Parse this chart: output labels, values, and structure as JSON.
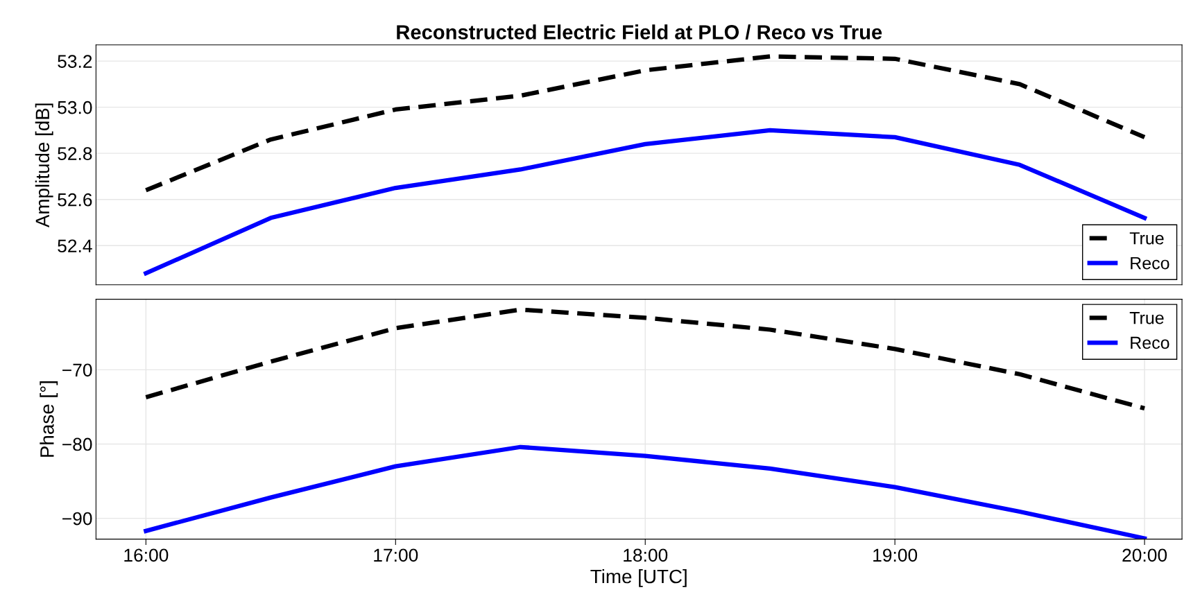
{
  "chart_data": [
    {
      "type": "line",
      "title": "Reconstructed Electric Field at PLO / Reco vs True",
      "ylabel": "Amplitude [dB]",
      "x": [
        16,
        16.5,
        17,
        17.5,
        18,
        18.5,
        19,
        19.5,
        20
      ],
      "series": [
        {
          "name": "True",
          "color": "#000000",
          "line_style": "dashed",
          "values": [
            52.64,
            52.86,
            52.99,
            53.05,
            53.16,
            53.22,
            53.21,
            53.1,
            52.87
          ]
        },
        {
          "name": "Reco",
          "color": "#0000ff",
          "line_style": "solid",
          "values": [
            52.28,
            52.52,
            52.65,
            52.73,
            52.84,
            52.9,
            52.87,
            52.75,
            52.52
          ]
        }
      ],
      "xlim": [
        15.8,
        20.15
      ],
      "ylim": [
        52.23,
        53.27
      ],
      "yticks": [
        {
          "value": 52.4,
          "label": "52.4"
        },
        {
          "value": 52.6,
          "label": "52.6"
        },
        {
          "value": 52.8,
          "label": "52.8"
        },
        {
          "value": 53.0,
          "label": "53.0"
        },
        {
          "value": 53.2,
          "label": "53.2"
        }
      ],
      "tick_labels": "y",
      "grid": "y",
      "legend": "bottom right"
    },
    {
      "type": "line",
      "xlabel": "Time [UTC]",
      "ylabel": "Phase [°]",
      "x": [
        16,
        16.5,
        17,
        17.5,
        18,
        18.5,
        19,
        19.5,
        20
      ],
      "series": [
        {
          "name": "True",
          "color": "#000000",
          "line_style": "dashed",
          "values": [
            -73.7,
            -68.9,
            -64.4,
            -61.9,
            -63.0,
            -64.6,
            -67.2,
            -70.6,
            -75.2
          ]
        },
        {
          "name": "Reco",
          "color": "#0000ff",
          "line_style": "solid",
          "values": [
            -91.7,
            -87.2,
            -83.0,
            -80.4,
            -81.6,
            -83.3,
            -85.8,
            -89.1,
            -92.7
          ]
        }
      ],
      "xlim": [
        15.8,
        20.15
      ],
      "xticks": [
        {
          "value": 16,
          "label": "16:00"
        },
        {
          "value": 17,
          "label": "17:00"
        },
        {
          "value": 18,
          "label": "18:00"
        },
        {
          "value": 19,
          "label": "19:00"
        },
        {
          "value": 20,
          "label": "20:00"
        }
      ],
      "ylim": [
        -92.8,
        -60.5
      ],
      "yticks": [
        {
          "value": -90,
          "label": "−90"
        },
        {
          "value": -80,
          "label": "−80"
        },
        {
          "value": -70,
          "label": "−70"
        }
      ],
      "grid": true,
      "legend": "top right"
    }
  ]
}
